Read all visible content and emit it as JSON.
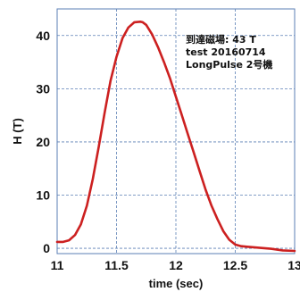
{
  "chart_data": {
    "type": "line",
    "title": "",
    "xlabel": "time (sec)",
    "ylabel": "H (T)",
    "xlim": [
      11,
      13
    ],
    "ylim": [
      -1,
      45
    ],
    "xticks": [
      11,
      11.5,
      12,
      12.5,
      13
    ],
    "xtick_labels": [
      "11",
      "11.5",
      "12",
      "12.5",
      "13"
    ],
    "yticks": [
      0,
      10,
      20,
      30,
      40
    ],
    "ytick_labels": [
      "0",
      "10",
      "20",
      "30",
      "40"
    ],
    "grid": true,
    "grid_style": "dashed",
    "line_color": "#cc2020",
    "grid_color": "#5b7fb5",
    "annotation": [
      "到達磁場: 43 T",
      "test 20160714",
      "LongPulse 2号機"
    ],
    "annotation_position": "top-right",
    "series": [
      {
        "x": [
          11.0,
          11.05,
          11.1,
          11.15,
          11.2,
          11.25,
          11.3,
          11.35,
          11.4,
          11.45,
          11.5,
          11.55,
          11.6,
          11.65,
          11.7,
          11.72,
          11.75,
          11.8,
          11.85,
          11.9,
          11.95,
          12.0,
          12.05,
          12.1,
          12.15,
          12.2,
          12.25,
          12.3,
          12.35,
          12.4,
          12.45,
          12.5,
          12.55,
          12.6,
          12.7,
          12.8,
          12.9,
          13.0
        ],
        "y": [
          1.2,
          1.2,
          1.5,
          2.5,
          4.5,
          8.0,
          13.0,
          19.0,
          25.5,
          31.5,
          36.0,
          39.5,
          41.5,
          42.5,
          42.6,
          42.5,
          42.0,
          40.2,
          37.8,
          35.0,
          32.0,
          28.5,
          25.0,
          21.5,
          18.0,
          14.5,
          11.0,
          8.0,
          5.5,
          3.2,
          1.6,
          0.7,
          0.4,
          0.3,
          0.1,
          -0.1,
          -0.4,
          -0.5
        ]
      }
    ]
  }
}
